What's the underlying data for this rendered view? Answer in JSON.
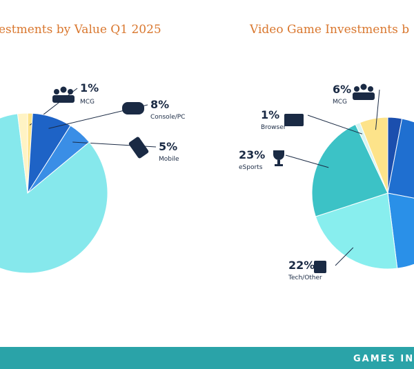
{
  "chart_data": [
    {
      "type": "pie",
      "title": "estments by Value Q1 2025",
      "categories": [
        "MCG",
        "Console/PC",
        "Mobile",
        null,
        null
      ],
      "values": [
        1,
        8,
        5,
        84,
        2
      ],
      "value_labels": [
        "1%",
        "8%",
        "5%",
        null,
        null
      ],
      "colors": [
        "#fde38a",
        "#1e63c6",
        "#3a8ee6",
        "#86e8ec",
        "#fff3c4"
      ]
    },
    {
      "type": "pie",
      "title": "Video Game Investments b",
      "categories": [
        null,
        null,
        null,
        "Tech/Other",
        "eSports",
        "Browser",
        "MCG"
      ],
      "values": [
        3,
        25,
        20,
        22,
        23,
        1,
        6
      ],
      "value_labels": [
        null,
        null,
        null,
        "22%",
        "23%",
        "1%",
        "6%"
      ],
      "colors": [
        "#1b4fae",
        "#1f6fd0",
        "#2a90e8",
        "#88eeee",
        "#3cc2c6",
        "#d7f4f2",
        "#fde38a"
      ]
    }
  ],
  "footer": "GAMES INV"
}
